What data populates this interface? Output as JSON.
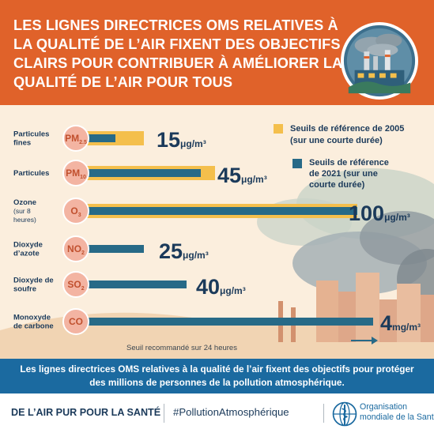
{
  "header": {
    "title": "LES LIGNES DIRECTRICES OMS RELATIVES À LA QUALITÉ DE L’AIR FIXENT DES OBJECTIFS CLAIRS POUR CONTRIBUER À AMÉLIORER LA QUALITÉ DE L’AIR POUR TOUS",
    "emblem_icon": "factory-pollution-icon"
  },
  "colors": {
    "header_bg": "#e0622a",
    "chart_bg": "#fbeedd",
    "bar_2005": "#f4bf4c",
    "bar_2021": "#276a87",
    "pollutant_circle": "#f3b4a2",
    "pollutant_text": "#c1502e",
    "caption_bg": "#1b6aa0",
    "text_dark": "#1b3a5a"
  },
  "legend": {
    "entries": [
      {
        "label_line1": "Seuils de référence de 2005",
        "label_line2": "(sur une courte durée)"
      },
      {
        "label_line1": "Seuils de référence",
        "label_line2": "de 2021 (sur une",
        "label_line3": "courte durée)"
      }
    ]
  },
  "chart_data": {
    "type": "bar",
    "orientation": "horizontal",
    "unit_note": "μg/m³ (CO en mg/m³)",
    "categories": [
      {
        "name_lines": [
          "Particules",
          "fines"
        ],
        "symbol": "PM",
        "subscript": "2.5",
        "value_2021": "15",
        "unit_2021": "μg/m³"
      },
      {
        "name_lines": [
          "Particules"
        ],
        "symbol": "PM",
        "subscript": "10",
        "value_2021": "45",
        "unit_2021": "μg/m³"
      },
      {
        "name_lines": [
          "Ozone",
          "(sur 8",
          "heures)"
        ],
        "symbol": "O",
        "subscript": "3",
        "value_2021": "100",
        "unit_2021": "μg/m³"
      },
      {
        "name_lines": [
          "Dioxyde",
          "d’azote"
        ],
        "symbol": "NO",
        "subscript": "2",
        "value_2021": "25",
        "unit_2021": "μg/m³"
      },
      {
        "name_lines": [
          "Dioxyde de",
          "soufre"
        ],
        "symbol": "SO",
        "subscript": "2",
        "value_2021": "40",
        "unit_2021": "μg/m³"
      },
      {
        "name_lines": [
          "Monoxyde",
          "de carbone"
        ],
        "symbol": "CO",
        "subscript": "",
        "value_2021": "4",
        "unit_2021": "mg/m³"
      }
    ],
    "series": [
      {
        "name": "Seuils de référence de 2005 (sur une courte durée)",
        "values": [
          25,
          50,
          100,
          null,
          null,
          null
        ]
      },
      {
        "name": "Seuils de référence de 2021 (sur une courte durée)",
        "values": [
          15,
          45,
          100,
          25,
          40,
          4
        ]
      }
    ],
    "annotation": "Seuil recommandé sur 24 heures"
  },
  "caption": {
    "text": "Les lignes directrices OMS relatives à la qualité de l’air fixent des objectifs pour protéger des millions de personnes de la pollution atmosphérique."
  },
  "footer": {
    "slogan": "DE L’AIR PUR POUR LA SANTÉ",
    "hashtag": "#PollutionAtmosphérique",
    "org_line1": "Organisation",
    "org_line2": "mondiale de la Santé",
    "logo_icon": "who-emblem-icon"
  }
}
